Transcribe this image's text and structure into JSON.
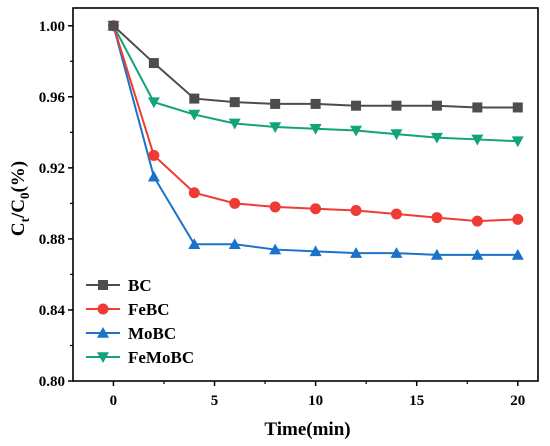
{
  "chart_data": {
    "type": "line",
    "xlabel": "Time(min)",
    "ylabel": {
      "main": "C",
      "sub1": "t",
      "mid": "/C",
      "sub2": "0",
      "tail": "(%)"
    },
    "xlim": [
      -2,
      21
    ],
    "ylim": [
      0.8,
      1.01
    ],
    "xticks": [
      0,
      5,
      10,
      15,
      20
    ],
    "yticks": [
      0.8,
      0.84,
      0.88,
      0.92,
      0.96,
      1.0
    ],
    "ytick_labels": [
      "0.80",
      "0.84",
      "0.88",
      "0.92",
      "0.96",
      "1.00"
    ],
    "grid": false,
    "legend_position": "bottom-left",
    "series": [
      {
        "name": "BC",
        "color": "#4d4d4d",
        "marker": "square",
        "x": [
          0,
          2,
          4,
          6,
          8,
          10,
          12,
          14,
          16,
          18,
          20
        ],
        "y": [
          1.0,
          0.979,
          0.959,
          0.957,
          0.956,
          0.956,
          0.955,
          0.955,
          0.955,
          0.954,
          0.954
        ]
      },
      {
        "name": "FeBC",
        "color": "#ef3b36",
        "marker": "circle",
        "x": [
          0,
          2,
          4,
          6,
          8,
          10,
          12,
          14,
          16,
          18,
          20
        ],
        "y": [
          1.0,
          0.927,
          0.906,
          0.9,
          0.898,
          0.897,
          0.896,
          0.894,
          0.892,
          0.89,
          0.891
        ]
      },
      {
        "name": "MoBC",
        "color": "#1a73c8",
        "marker": "triangle-up",
        "x": [
          0,
          2,
          4,
          6,
          8,
          10,
          12,
          14,
          16,
          18,
          20
        ],
        "y": [
          1.0,
          0.915,
          0.877,
          0.877,
          0.874,
          0.873,
          0.872,
          0.872,
          0.871,
          0.871,
          0.871
        ]
      },
      {
        "name": "FeMoBC",
        "color": "#12a37a",
        "marker": "triangle-down",
        "x": [
          0,
          2,
          4,
          6,
          8,
          10,
          12,
          14,
          16,
          18,
          20
        ],
        "y": [
          1.0,
          0.957,
          0.95,
          0.945,
          0.943,
          0.942,
          0.941,
          0.939,
          0.937,
          0.936,
          0.935
        ]
      }
    ]
  }
}
